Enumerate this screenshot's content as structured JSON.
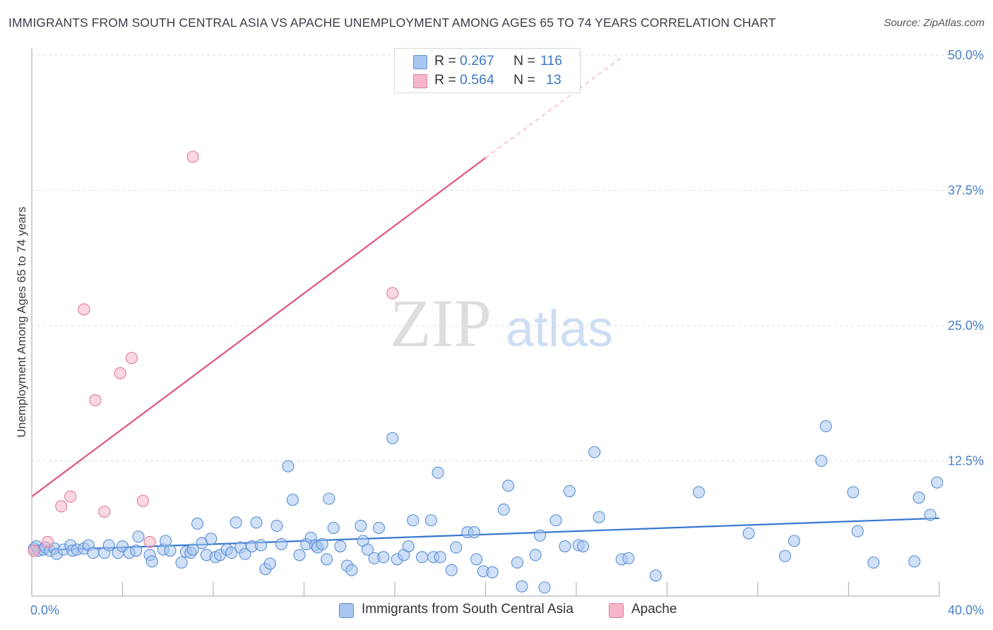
{
  "title": "IMMIGRANTS FROM SOUTH CENTRAL ASIA VS APACHE UNEMPLOYMENT AMONG AGES 65 TO 74 YEARS CORRELATION CHART",
  "source": "Source: ZipAtlas.com",
  "watermark": {
    "zip": "ZIP",
    "atlas": "atlas"
  },
  "legend": {
    "rows": [
      {
        "r_label": "R =",
        "r_value": "0.267",
        "n_label": "N =",
        "n_value": "116",
        "color": "#a9c6f0",
        "stroke": "#5b8fd6"
      },
      {
        "r_label": "R =",
        "r_value": "0.564",
        "n_label": "N =",
        "n_value": "13",
        "color": "#f7b6c8",
        "stroke": "#e07a9a"
      }
    ]
  },
  "bottom_legend": [
    {
      "label": "Immigrants from South Central Asia",
      "color": "#a9c6f0",
      "stroke": "#5b8fd6"
    },
    {
      "label": "Apache",
      "color": "#f7b6c8",
      "stroke": "#e07a9a"
    }
  ],
  "chart_data": {
    "type": "scatter",
    "title": "IMMIGRANTS FROM SOUTH CENTRAL ASIA VS APACHE UNEMPLOYMENT AMONG AGES 65 TO 74 YEARS CORRELATION CHART",
    "xlabel": "",
    "ylabel": "Unemployment Among Ages 65 to 74 years",
    "xlim": [
      0,
      40
    ],
    "ylim": [
      0,
      50
    ],
    "x_tick_labels": [
      "0.0%",
      "40.0%"
    ],
    "y_ticks": [
      12.5,
      25.0,
      37.5,
      50.0
    ],
    "y_tick_labels": [
      "12.5%",
      "25.0%",
      "37.5%",
      "50.0%"
    ],
    "grid": true,
    "legend_position": "top-center",
    "series": [
      {
        "name": "Immigrants from South Central Asia",
        "color": "#a9c6f0",
        "stroke": "#5b8fd6",
        "trend": {
          "x": [
            0,
            40
          ],
          "y": [
            4.2,
            7.2
          ],
          "color": "#3577cf"
        },
        "points": [
          [
            0.1,
            4.4
          ],
          [
            0.2,
            4.6
          ],
          [
            0.3,
            4.2
          ],
          [
            0.5,
            4.3
          ],
          [
            0.6,
            4.5
          ],
          [
            0.8,
            4.2
          ],
          [
            1.0,
            4.4
          ],
          [
            1.1,
            3.9
          ],
          [
            1.4,
            4.3
          ],
          [
            1.7,
            4.7
          ],
          [
            1.8,
            4.2
          ],
          [
            2.0,
            4.3
          ],
          [
            2.3,
            4.4
          ],
          [
            2.5,
            4.7
          ],
          [
            2.7,
            4.0
          ],
          [
            3.2,
            4.0
          ],
          [
            3.4,
            4.7
          ],
          [
            3.8,
            4.0
          ],
          [
            4.0,
            4.6
          ],
          [
            4.3,
            4.0
          ],
          [
            4.6,
            4.2
          ],
          [
            4.7,
            5.5
          ],
          [
            5.2,
            3.8
          ],
          [
            5.3,
            3.2
          ],
          [
            5.8,
            4.3
          ],
          [
            5.9,
            5.1
          ],
          [
            6.1,
            4.2
          ],
          [
            6.6,
            3.1
          ],
          [
            6.8,
            4.1
          ],
          [
            7.0,
            4.0
          ],
          [
            7.1,
            4.3
          ],
          [
            7.3,
            6.7
          ],
          [
            7.5,
            4.9
          ],
          [
            7.7,
            3.8
          ],
          [
            7.9,
            5.3
          ],
          [
            8.1,
            3.6
          ],
          [
            8.3,
            3.8
          ],
          [
            8.6,
            4.3
          ],
          [
            8.8,
            4.0
          ],
          [
            9.0,
            6.8
          ],
          [
            9.2,
            4.5
          ],
          [
            9.4,
            3.9
          ],
          [
            9.7,
            4.6
          ],
          [
            9.9,
            6.8
          ],
          [
            10.1,
            4.7
          ],
          [
            10.3,
            2.5
          ],
          [
            10.5,
            3.0
          ],
          [
            10.8,
            6.5
          ],
          [
            11.0,
            4.8
          ],
          [
            11.3,
            12.0
          ],
          [
            11.5,
            8.9
          ],
          [
            11.8,
            3.8
          ],
          [
            12.1,
            4.8
          ],
          [
            12.3,
            5.4
          ],
          [
            12.5,
            4.7
          ],
          [
            12.6,
            4.5
          ],
          [
            12.8,
            4.8
          ],
          [
            13.0,
            3.4
          ],
          [
            13.1,
            9.0
          ],
          [
            13.3,
            6.3
          ],
          [
            13.6,
            4.6
          ],
          [
            13.9,
            2.8
          ],
          [
            14.1,
            2.4
          ],
          [
            14.5,
            6.5
          ],
          [
            14.6,
            5.1
          ],
          [
            14.8,
            4.3
          ],
          [
            15.1,
            3.5
          ],
          [
            15.3,
            6.3
          ],
          [
            15.5,
            3.6
          ],
          [
            15.9,
            14.6
          ],
          [
            16.1,
            3.4
          ],
          [
            16.4,
            3.8
          ],
          [
            16.6,
            4.6
          ],
          [
            16.8,
            7.0
          ],
          [
            17.2,
            3.6
          ],
          [
            17.6,
            7.0
          ],
          [
            17.7,
            3.6
          ],
          [
            17.9,
            11.4
          ],
          [
            18.0,
            3.6
          ],
          [
            18.5,
            2.4
          ],
          [
            18.7,
            4.5
          ],
          [
            19.2,
            5.9
          ],
          [
            19.5,
            5.9
          ],
          [
            19.6,
            3.4
          ],
          [
            19.9,
            2.3
          ],
          [
            20.3,
            2.2
          ],
          [
            20.8,
            8.0
          ],
          [
            21.0,
            10.2
          ],
          [
            21.4,
            3.1
          ],
          [
            21.6,
            0.9
          ],
          [
            22.2,
            3.8
          ],
          [
            22.4,
            5.6
          ],
          [
            22.6,
            0.8
          ],
          [
            23.1,
            7.0
          ],
          [
            23.5,
            4.6
          ],
          [
            23.7,
            9.7
          ],
          [
            24.1,
            4.7
          ],
          [
            24.3,
            4.6
          ],
          [
            24.8,
            13.3
          ],
          [
            25.0,
            7.3
          ],
          [
            26.0,
            3.4
          ],
          [
            26.3,
            3.5
          ],
          [
            27.5,
            1.9
          ],
          [
            29.4,
            9.6
          ],
          [
            31.6,
            5.8
          ],
          [
            33.2,
            3.7
          ],
          [
            33.6,
            5.1
          ],
          [
            34.8,
            12.5
          ],
          [
            35.0,
            15.7
          ],
          [
            36.2,
            9.6
          ],
          [
            36.4,
            6.0
          ],
          [
            37.1,
            3.1
          ],
          [
            38.9,
            3.2
          ],
          [
            39.1,
            9.1
          ],
          [
            39.6,
            7.5
          ],
          [
            39.9,
            10.5
          ]
        ]
      },
      {
        "name": "Apache",
        "color": "#f7b6c8",
        "stroke": "#e07a9a",
        "trend": {
          "x": [
            0,
            20
          ],
          "y": [
            9.2,
            40.5
          ],
          "color": "#e0557f"
        },
        "trend_extension": {
          "x": [
            20,
            26
          ],
          "y": [
            40.5,
            49.8
          ]
        },
        "points": [
          [
            0.1,
            4.2
          ],
          [
            0.7,
            5.0
          ],
          [
            1.3,
            8.3
          ],
          [
            1.7,
            9.2
          ],
          [
            2.3,
            26.5
          ],
          [
            2.8,
            18.1
          ],
          [
            3.2,
            7.8
          ],
          [
            3.9,
            20.6
          ],
          [
            4.4,
            22.0
          ],
          [
            4.9,
            8.8
          ],
          [
            5.2,
            5.0
          ],
          [
            7.1,
            40.6
          ],
          [
            15.9,
            28.0
          ]
        ]
      }
    ]
  }
}
